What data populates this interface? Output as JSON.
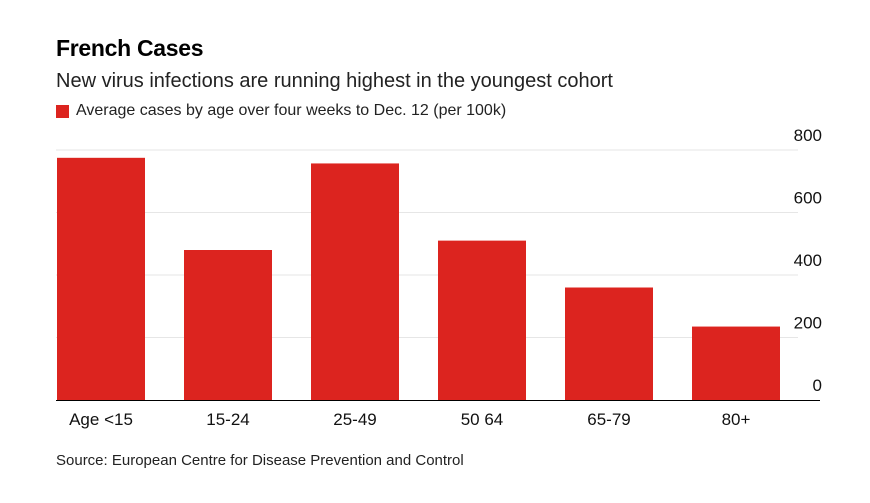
{
  "chart_data": {
    "type": "bar",
    "title": "French Cases",
    "subtitle": "New virus infections are running highest in the youngest cohort",
    "categories": [
      "Age <15",
      "15-24",
      "25-49",
      "50 64",
      "65-79",
      "80+"
    ],
    "series": [
      {
        "name": "Average cases by age over four weeks to Dec. 12 (per 100k)",
        "values": [
          775,
          480,
          757,
          510,
          360,
          235
        ]
      }
    ],
    "ylim": [
      0,
      800
    ],
    "yticks": [
      0,
      200,
      400,
      600,
      800
    ],
    "y_axis_side": "right",
    "grid": true,
    "legend_position": "top-left",
    "bar_color": "#dc241f",
    "grid_color": "#e6e6e6",
    "baseline_color": "#000000",
    "source": "Source: European Centre for Disease Prevention and Control"
  }
}
